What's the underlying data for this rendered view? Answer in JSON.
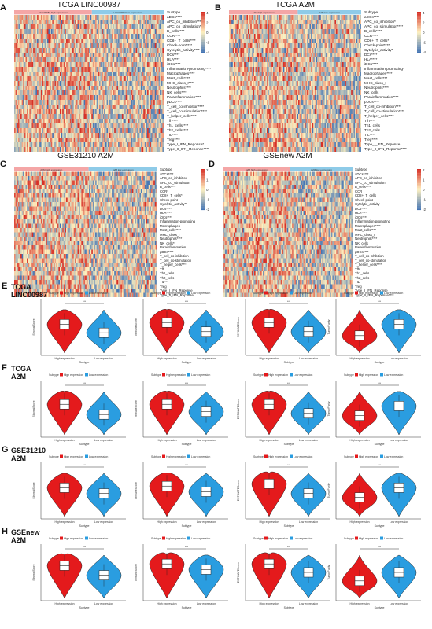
{
  "panels_heat": [
    {
      "letter": "A",
      "title": "TCGA LINC00987",
      "groups": [
        "LINC00987 high expression",
        "LINC00987 low expression"
      ],
      "rows": [
        "Subtype",
        "aDCs****",
        "APC_co_inhibition****",
        "APC_co_stimulation****",
        "B_cells****",
        "CCR****",
        "CD8+_T_cells****",
        "Check-point****",
        "Cytolytic_activity****",
        "DCs****",
        "HLA****",
        "iDCs****",
        "Inflammation-promoting****",
        "Macrophages****",
        "Mast_cells****",
        "MHC_class_I****",
        "Neutrophils****",
        "NK_cells****",
        "Parainflammation****",
        "pDCs****",
        "T_cell_co-inhibition****",
        "T_cell_co-stimulation****",
        "T_helper_cells****",
        "Tfh****",
        "Th1_cells****",
        "Th2_cells****",
        "TIL****",
        "Treg****",
        "Type_I_IFN_Reponse*",
        "Type_II_IFN_Reponse****"
      ]
    },
    {
      "letter": "B",
      "title": "TCGA A2M",
      "groups": [
        "A2M high expression",
        "A2M low expression"
      ],
      "rows": [
        "Subtype",
        "aDCs****",
        "APC_co_inhibition*",
        "APC_co_stimulation****",
        "B_cells****",
        "CCR****",
        "CD8+_T_cells*",
        "Check-point****",
        "Cytolytic_activity*",
        "DCs****",
        "HLA****",
        "iDCs****",
        "Inflammation-promoting*",
        "Macrophages****",
        "Mast_cells****",
        "MHC_class_I",
        "Neutrophils****",
        "NK_cells",
        "Parainflammation****",
        "pDCs****",
        "T_cell_co-inhibition****",
        "T_cell_co-stimulation****",
        "T_helper_cells****",
        "Tfh****",
        "Th1_cells",
        "Th2_cells",
        "TIL****",
        "Treg****",
        "Type_I_IFN_Reponse",
        "Type_II_IFN_Reponse****"
      ]
    },
    {
      "letter": "C",
      "title": "GSE31210 A2M",
      "groups": [
        "A2M high expression",
        "A2M low expression"
      ],
      "rows": [
        "Subtype",
        "aDCs****",
        "APC_co_inhibition",
        "APC_co_stimulation",
        "B_cells****",
        "CCR*",
        "CD8+_T_cells*",
        "Check-point",
        "Cytolytic_activity**",
        "DCs****",
        "HLA****",
        "iDCs****",
        "Inflammation-promoting",
        "Macrophages",
        "Mast_cells****",
        "MHC_class_I",
        "Neutrophils****",
        "NK_cells**",
        "Parainflammation",
        "pDCs****",
        "T_cell_co-inhibition",
        "T_cell_co-stimulation",
        "T_helper_cells****",
        "Tfh",
        "Th1_cells",
        "Th2_cells",
        "TIL***",
        "Treg",
        "Type_I_IFN_Reponse",
        "Type_II_IFN_Reponse"
      ]
    },
    {
      "letter": "D",
      "title": "GSEnew A2M",
      "groups": [
        "A2M high expression",
        "A2M low expression"
      ],
      "rows": [
        "Subtype",
        "aDCs****",
        "APC_co_inhibition",
        "APC_co_stimulation",
        "B_cells****",
        "CCR",
        "CD8+_T_cells",
        "Check-point",
        "Cytolytic_activity",
        "DCs****",
        "HLA****",
        "iDCs****",
        "Inflammation-promoting",
        "Macrophages****",
        "Mast_cells****",
        "MHC_class_I",
        "Neutrophils****",
        "NK_cells",
        "Parainflammation",
        "pDCs****",
        "T_cell_co-inhibition",
        "T_cell_co-stimulation",
        "T_helper_cells****",
        "Tfh",
        "Th1_cells",
        "Th2_cells",
        "TIL",
        "Treg",
        "Type_I_IFN_Reponse",
        "Type_II_IFN_Reponse****"
      ]
    }
  ],
  "legend_ticks_ab": [
    "4",
    "2",
    "0",
    "-2",
    "-4"
  ],
  "legend_ticks_cd": [
    "2",
    "1",
    "0",
    "-1",
    "-2"
  ],
  "violin_rows": [
    {
      "letter": "E",
      "title_line1": "TCGA",
      "title_line2": "LINC00987"
    },
    {
      "letter": "F",
      "title_line1": "TCGA",
      "title_line2": "A2M"
    },
    {
      "letter": "G",
      "title_line1": "GSE31210",
      "title_line2": "A2M"
    },
    {
      "letter": "H",
      "title_line1": "GSEnew",
      "title_line2": "A2M"
    }
  ],
  "violin_common": {
    "legend_title": "Subtype",
    "legend_high": "High expression",
    "legend_low": "Low expression",
    "xtick_high": "High expression",
    "xtick_low": "Low expression",
    "xlabel": "Subtype",
    "sig": "***",
    "ylabels": [
      "StromalScore",
      "ImmuneScore",
      "ESTIMATEScore",
      "TumorPurity"
    ]
  },
  "colors": {
    "high": "#e41a1c",
    "low": "#2a9de0",
    "hm_red": "#d73027",
    "hm_blue": "#4575b4",
    "hm_mid": "#fee8b0",
    "bar_pink": "#f4a6a6",
    "bar_blue": "#8ecbe8"
  }
}
